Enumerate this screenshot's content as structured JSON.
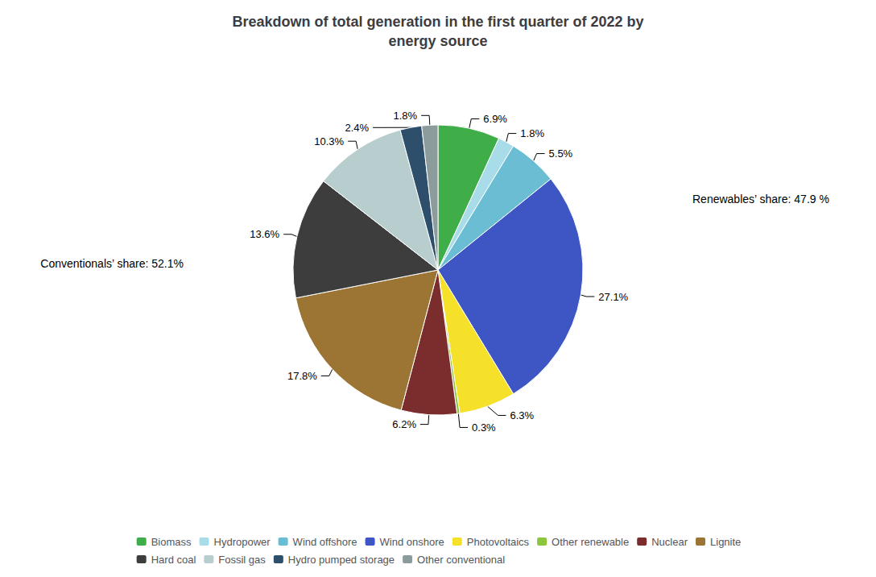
{
  "chart_data": {
    "type": "pie",
    "title": "Breakdown of total generation in the first quarter of 2022 by\nenergy source",
    "categories": [
      "Biomass",
      "Hydropower",
      "Wind offshore",
      "Wind onshore",
      "Photovoltaics",
      "Other renewable",
      "Nuclear",
      "Lignite",
      "Hard coal",
      "Fossil gas",
      "Hydro pumped storage",
      "Other conventional"
    ],
    "values": [
      6.9,
      1.8,
      5.5,
      27.1,
      6.3,
      0.3,
      6.2,
      17.8,
      13.6,
      10.3,
      2.4,
      1.8
    ],
    "value_labels": [
      "6.9%",
      "1.8%",
      "5.5%",
      "27.1%",
      "6.3%",
      "0.3%",
      "6.2%",
      "17.8%",
      "13.6%",
      "10.3%",
      "2.4%",
      "1.8%"
    ],
    "colors": [
      "#3fae49",
      "#a8dce8",
      "#6bbdd4",
      "#3d56c4",
      "#f5e02a",
      "#8cc63e",
      "#7b2d2d",
      "#9c7433",
      "#3d3d3d",
      "#b8cece",
      "#2e4f6b",
      "#8c9c9c"
    ],
    "annotations": [
      "Renewables’ share: 47.9 %",
      "Conventionals’ share: 52.1%"
    ],
    "data_labels": true,
    "legend": "bottom"
  }
}
